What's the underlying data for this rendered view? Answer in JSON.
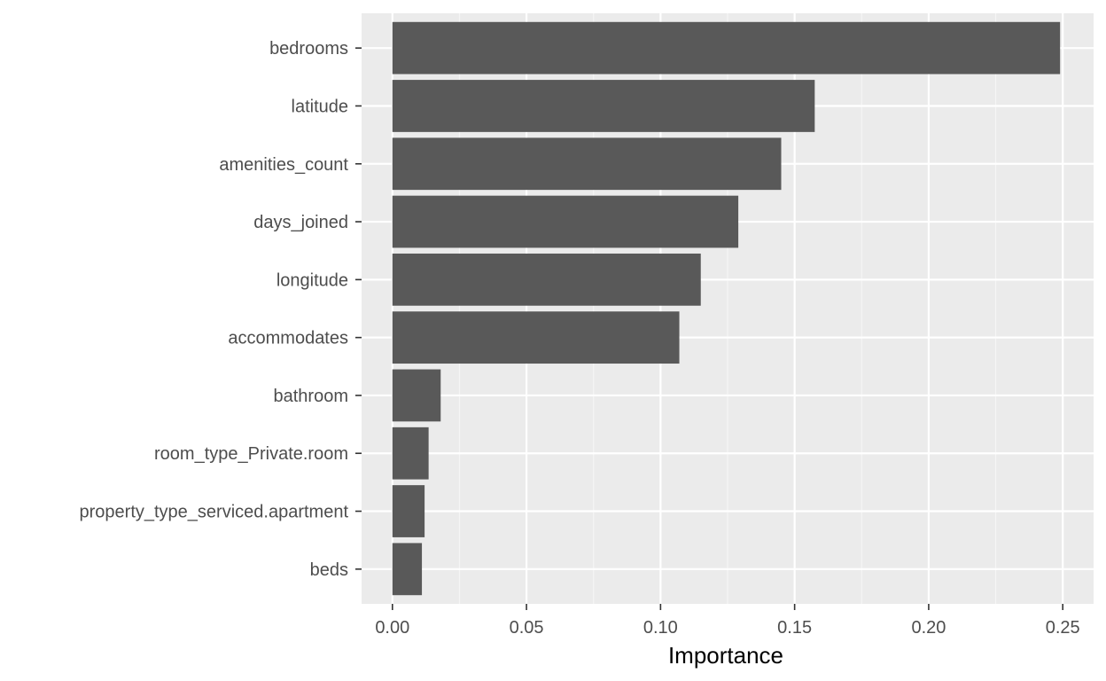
{
  "chart_data": {
    "type": "bar",
    "orientation": "horizontal",
    "categories": [
      "bedrooms",
      "latitude",
      "amenities_count",
      "days_joined",
      "longitude",
      "accommodates",
      "bathroom",
      "room_type_Private.room",
      "property_type_serviced.apartment",
      "beds"
    ],
    "values": [
      0.249,
      0.1575,
      0.145,
      0.129,
      0.115,
      0.107,
      0.018,
      0.0135,
      0.012,
      0.011
    ],
    "xlabel": "Importance",
    "ylabel": "",
    "xlim": [
      -0.0115,
      0.2615
    ],
    "xticks": [
      0.0,
      0.05,
      0.1,
      0.15,
      0.2,
      0.25
    ],
    "xtick_labels": [
      "0.00",
      "0.05",
      "0.10",
      "0.15",
      "0.20",
      "0.25"
    ],
    "grid": true,
    "legend": "none",
    "colors": {
      "bar": "#595959",
      "panel_background": "#ebebeb",
      "grid_major": "#ffffff",
      "grid_minor": "#f5f5f5",
      "axis_text": "#4d4d4d",
      "axis_ticks": "#333333",
      "title_text": "#000000"
    }
  }
}
